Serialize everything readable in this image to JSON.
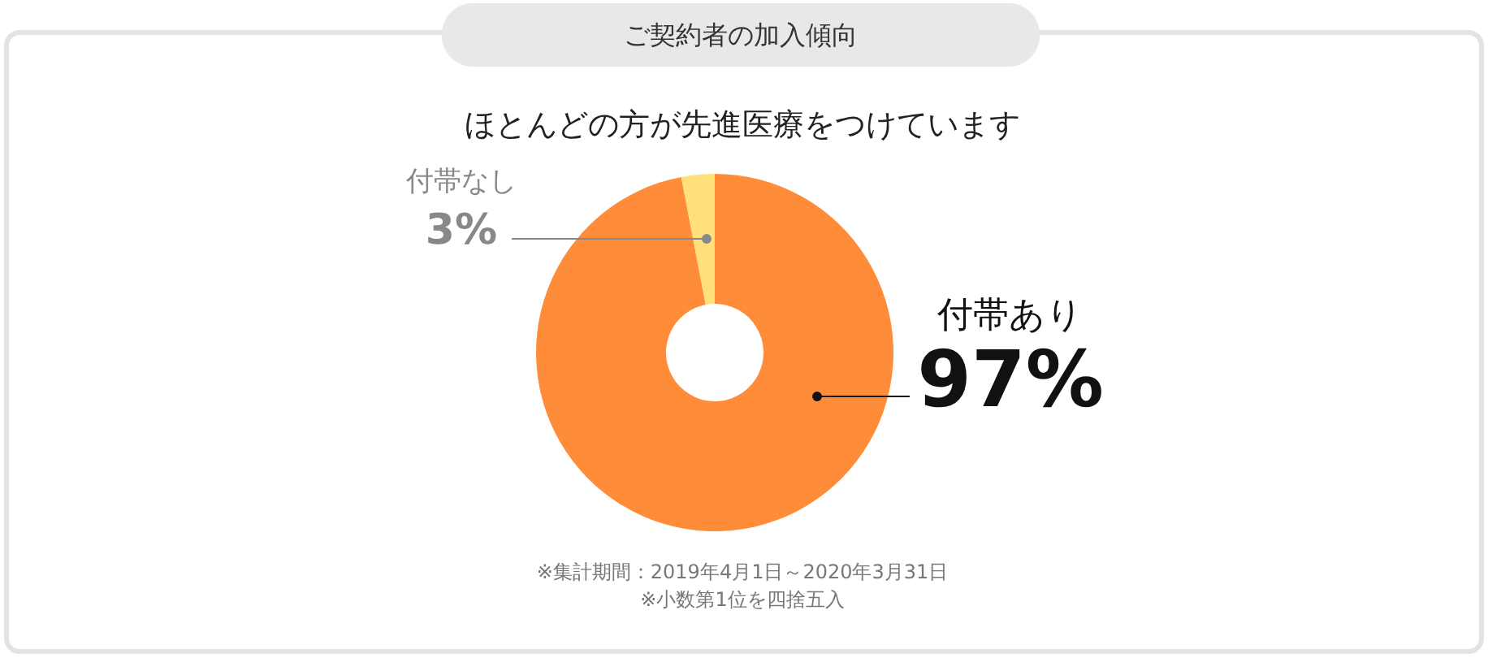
{
  "chart_data": {
    "type": "donut",
    "title": "ご契約者の加入傾向",
    "subtitle": "ほとんどの方が先進医療をつけています",
    "categories": [
      "付帯あり",
      "付帯なし"
    ],
    "values": [
      97,
      3
    ],
    "colors": [
      "#ff8c38",
      "#ffe07a"
    ],
    "value_labels": [
      "97%",
      "3%"
    ],
    "annotations": [
      "※集計期間：2019年4月1日～2020年3月31日",
      "※小数第1位を四捨五入"
    ]
  }
}
